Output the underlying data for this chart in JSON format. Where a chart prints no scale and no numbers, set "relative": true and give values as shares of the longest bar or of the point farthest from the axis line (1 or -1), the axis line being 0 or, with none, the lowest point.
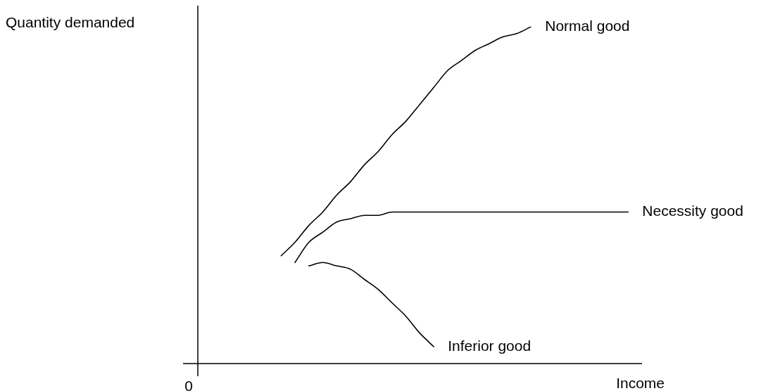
{
  "chart_data": {
    "type": "line",
    "relative": true,
    "xlabel": "Income",
    "ylabel": "Quantity demanded",
    "annotations": [
      "0"
    ],
    "categories": [
      null,
      null,
      null,
      null,
      null,
      null,
      null,
      null,
      null,
      null,
      null,
      null,
      null,
      null,
      null,
      null,
      null,
      null,
      null,
      null,
      null,
      null,
      null,
      null,
      null,
      null,
      null,
      null,
      null,
      null,
      null,
      null,
      null
    ],
    "series": [
      {
        "name": "Normal good",
        "color": "#000000",
        "values": [
          null,
          null,
          null,
          null,
          null,
          null,
          0.32,
          0.36,
          0.41,
          0.45,
          0.5,
          0.54,
          0.59,
          0.63,
          0.68,
          0.72,
          0.77,
          0.82,
          0.87,
          0.9,
          0.93,
          0.95,
          0.97,
          0.98,
          1,
          null,
          null,
          null,
          null,
          null,
          null,
          null,
          null
        ]
      },
      {
        "name": "Necessity good",
        "color": "#000000",
        "values": [
          null,
          null,
          null,
          null,
          null,
          null,
          null,
          0.3,
          0.36,
          0.39,
          0.42,
          0.43,
          0.44,
          0.44,
          0.45,
          0.45,
          0.45,
          0.45,
          0.45,
          0.45,
          0.45,
          0.45,
          0.45,
          0.45,
          0.45,
          0.45,
          0.45,
          0.45,
          0.45,
          0.45,
          0.45,
          0.45,
          null
        ]
      },
      {
        "name": "Inferior good",
        "color": "#000000",
        "values": [
          null,
          null,
          null,
          null,
          null,
          null,
          null,
          null,
          0.29,
          0.3,
          0.29,
          0.28,
          0.25,
          0.22,
          0.18,
          0.14,
          0.09,
          0.05,
          null,
          null,
          null,
          null,
          null,
          null,
          null,
          null,
          null,
          null,
          null,
          null,
          null,
          null,
          null
        ]
      }
    ],
    "legend": false,
    "marker": "none",
    "line_style": "solid"
  }
}
